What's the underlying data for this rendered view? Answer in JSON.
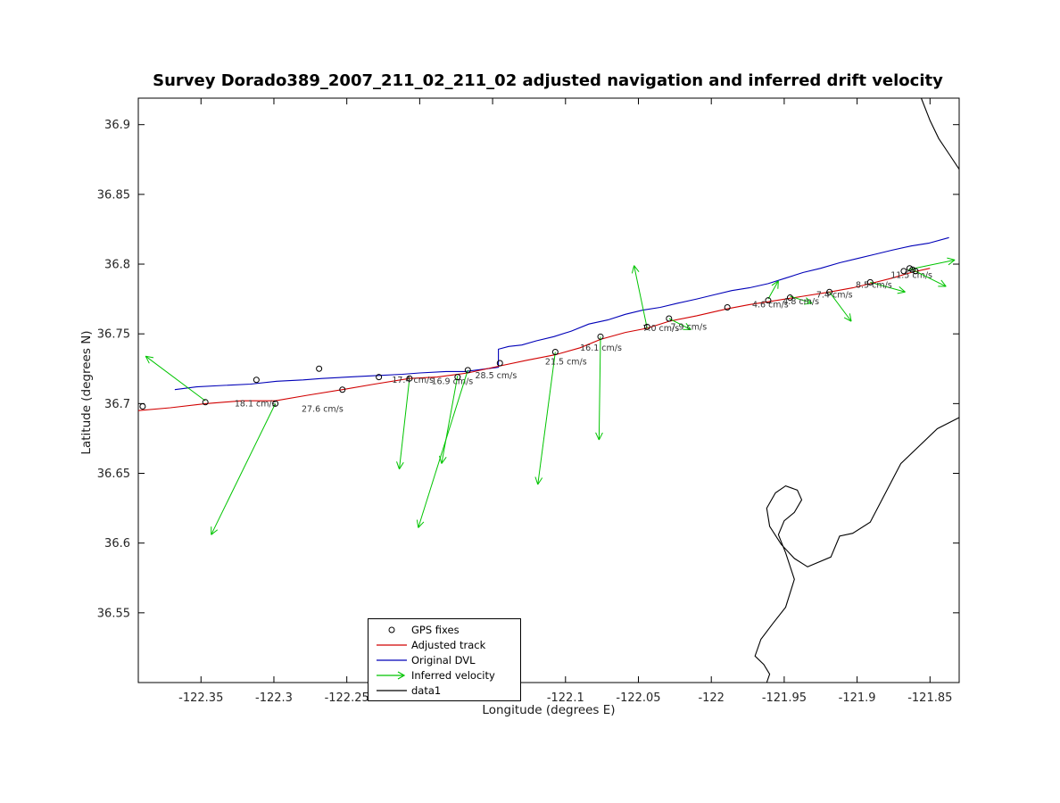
{
  "colors": {
    "gps": "#000000",
    "velocity": "#00c400"
  },
  "legend": {
    "items": [
      {
        "label": "GPS fixes"
      },
      {
        "label": "Adjusted track"
      },
      {
        "label": "Original DVL"
      },
      {
        "label": "Inferred velocity"
      },
      {
        "label": "data1"
      }
    ]
  },
  "chart_data": {
    "type": "line",
    "title": "Survey Dorado389_2007_211_02_211_02 adjusted navigation and inferred drift velocity",
    "xlabel": "Longitude (degrees E)",
    "ylabel": "Latitude (degrees N)",
    "xlim": [
      -122.393,
      -121.83
    ],
    "ylim": [
      36.5,
      36.919
    ],
    "xticks": [
      {
        "value": -122.35,
        "label": "-122.35"
      },
      {
        "value": -122.3,
        "label": "-122.3"
      },
      {
        "value": -122.25,
        "label": "-122.25"
      },
      {
        "value": -122.2,
        "label": "-122.2"
      },
      {
        "value": -122.15,
        "label": "-122.15"
      },
      {
        "value": -122.1,
        "label": "-122.1"
      },
      {
        "value": -122.05,
        "label": "-122.05"
      },
      {
        "value": -122.0,
        "label": "-122"
      },
      {
        "value": -121.95,
        "label": "-121.95"
      },
      {
        "value": -121.9,
        "label": "-121.9"
      },
      {
        "value": -121.85,
        "label": "-121.85"
      }
    ],
    "yticks": [
      {
        "value": 36.55,
        "label": "36.55"
      },
      {
        "value": 36.6,
        "label": "36.6"
      },
      {
        "value": 36.65,
        "label": "36.65"
      },
      {
        "value": 36.7,
        "label": "36.7"
      },
      {
        "value": 36.75,
        "label": "36.75"
      },
      {
        "value": 36.8,
        "label": "36.8"
      },
      {
        "value": 36.85,
        "label": "36.85"
      },
      {
        "value": 36.9,
        "label": "36.9"
      }
    ],
    "gps_fixes": [
      [
        -122.39,
        36.698
      ],
      [
        -122.347,
        36.701
      ],
      [
        -122.312,
        36.717
      ],
      [
        -122.299,
        36.7
      ],
      [
        -122.269,
        36.725
      ],
      [
        -122.253,
        36.71
      ],
      [
        -122.228,
        36.719
      ],
      [
        -122.207,
        36.718
      ],
      [
        -122.174,
        36.719
      ],
      [
        -122.167,
        36.724
      ],
      [
        -122.145,
        36.729
      ],
      [
        -122.107,
        36.737
      ],
      [
        -122.076,
        36.748
      ],
      [
        -122.044,
        36.755
      ],
      [
        -122.029,
        36.761
      ],
      [
        -121.989,
        36.769
      ],
      [
        -121.961,
        36.774
      ],
      [
        -121.946,
        36.776
      ],
      [
        -121.919,
        36.78
      ],
      [
        -121.891,
        36.787
      ],
      [
        -121.868,
        36.795
      ],
      [
        -121.864,
        36.797
      ],
      [
        -121.862,
        36.796
      ],
      [
        -121.86,
        36.795
      ]
    ],
    "series": [
      {
        "id": "original-dvl-track",
        "name": "Original DVL",
        "color": "#0000b8",
        "segments": [
          [
            [
              -122.368,
              36.71
            ],
            [
              -122.353,
              36.712
            ],
            [
              -122.335,
              36.713
            ],
            [
              -122.316,
              36.714
            ],
            [
              -122.298,
              36.716
            ],
            [
              -122.28,
              36.717
            ],
            [
              -122.267,
              36.718
            ],
            [
              -122.249,
              36.719
            ],
            [
              -122.231,
              36.72
            ],
            [
              -122.212,
              36.721
            ],
            [
              -122.2,
              36.722
            ],
            [
              -122.182,
              36.723
            ],
            [
              -122.169,
              36.723
            ],
            [
              -122.154,
              36.725
            ],
            [
              -122.146,
              36.726
            ],
            [
              -122.146,
              36.739
            ],
            [
              -122.139,
              36.741
            ],
            [
              -122.13,
              36.742
            ],
            [
              -122.12,
              36.745
            ],
            [
              -122.108,
              36.748
            ],
            [
              -122.096,
              36.752
            ],
            [
              -122.084,
              36.757
            ],
            [
              -122.071,
              36.76
            ],
            [
              -122.059,
              36.764
            ],
            [
              -122.047,
              36.767
            ],
            [
              -122.035,
              36.769
            ],
            [
              -122.023,
              36.772
            ],
            [
              -122.01,
              36.775
            ],
            [
              -121.998,
              36.778
            ],
            [
              -121.986,
              36.781
            ],
            [
              -121.974,
              36.783
            ],
            [
              -121.961,
              36.786
            ],
            [
              -121.949,
              36.79
            ],
            [
              -121.937,
              36.794
            ],
            [
              -121.925,
              36.797
            ],
            [
              -121.912,
              36.801
            ],
            [
              -121.9,
              36.804
            ],
            [
              -121.888,
              36.807
            ],
            [
              -121.876,
              36.81
            ],
            [
              -121.863,
              36.813
            ],
            [
              -121.851,
              36.815
            ],
            [
              -121.837,
              36.819
            ]
          ]
        ]
      },
      {
        "id": "adjusted-track",
        "name": "Adjusted track",
        "color": "#d10000",
        "segments": [
          [
            [
              -122.393,
              36.695
            ],
            [
              -122.371,
              36.697
            ],
            [
              -122.347,
              36.7
            ],
            [
              -122.322,
              36.702
            ],
            [
              -122.299,
              36.702
            ],
            [
              -122.277,
              36.706
            ],
            [
              -122.253,
              36.71
            ],
            [
              -122.231,
              36.714
            ],
            [
              -122.207,
              36.718
            ],
            [
              -122.188,
              36.719
            ],
            [
              -122.167,
              36.722
            ],
            [
              -122.145,
              36.727
            ],
            [
              -122.127,
              36.731
            ],
            [
              -122.107,
              36.735
            ],
            [
              -122.09,
              36.74
            ],
            [
              -122.076,
              36.746
            ],
            [
              -122.059,
              36.751
            ],
            [
              -122.044,
              36.754
            ],
            [
              -122.029,
              36.759
            ],
            [
              -122.01,
              36.763
            ],
            [
              -121.989,
              36.768
            ],
            [
              -121.974,
              36.771
            ],
            [
              -121.961,
              36.773
            ],
            [
              -121.937,
              36.777
            ],
            [
              -121.919,
              36.78
            ],
            [
              -121.903,
              36.783
            ],
            [
              -121.891,
              36.786
            ],
            [
              -121.876,
              36.79
            ],
            [
              -121.863,
              36.794
            ],
            [
              -121.85,
              36.797
            ]
          ]
        ]
      },
      {
        "id": "coastline",
        "name": "data1",
        "color": "#000000",
        "segments": [
          [
            [
              -121.856,
              36.919
            ],
            [
              -121.85,
              36.903
            ],
            [
              -121.844,
              36.89
            ],
            [
              -121.837,
              36.879
            ],
            [
              -121.83,
              36.868
            ]
          ],
          [
            [
              -121.83,
              36.69
            ],
            [
              -121.845,
              36.682
            ],
            [
              -121.87,
              36.657
            ],
            [
              -121.891,
              36.615
            ],
            [
              -121.903,
              36.607
            ],
            [
              -121.912,
              36.605
            ],
            [
              -121.918,
              36.59
            ],
            [
              -121.934,
              36.583
            ],
            [
              -121.943,
              36.589
            ],
            [
              -121.952,
              36.599
            ],
            [
              -121.96,
              36.612
            ],
            [
              -121.962,
              36.625
            ],
            [
              -121.956,
              36.636
            ],
            [
              -121.949,
              36.641
            ],
            [
              -121.941,
              36.638
            ],
            [
              -121.938,
              36.631
            ],
            [
              -121.943,
              36.622
            ],
            [
              -121.95,
              36.616
            ],
            [
              -121.954,
              36.606
            ],
            [
              -121.949,
              36.593
            ],
            [
              -121.943,
              36.574
            ],
            [
              -121.949,
              36.554
            ],
            [
              -121.958,
              36.542
            ],
            [
              -121.966,
              36.531
            ],
            [
              -121.97,
              36.519
            ],
            [
              -121.964,
              36.513
            ],
            [
              -121.96,
              36.506
            ],
            [
              -121.962,
              36.5
            ]
          ]
        ]
      }
    ],
    "vectors": [
      {
        "label": "18.1 cm/s",
        "start": [
          -122.347,
          36.702
        ],
        "end": [
          -122.388,
          36.734
        ],
        "label_pos": [
          -122.327,
          36.7
        ]
      },
      {
        "label": "27.6 cm/s",
        "start": [
          -122.299,
          36.7
        ],
        "end": [
          -122.343,
          36.606
        ],
        "label_pos": [
          -122.281,
          36.696
        ]
      },
      {
        "label": "17.4 cm/s",
        "start": [
          -122.207,
          36.718
        ],
        "end": [
          -122.214,
          36.653
        ],
        "label_pos": [
          -122.219,
          36.717
        ]
      },
      {
        "label": "16.9 cm/s",
        "start": [
          -122.174,
          36.72
        ],
        "end": [
          -122.185,
          36.657
        ],
        "label_pos": [
          -122.192,
          36.716
        ]
      },
      {
        "label": "28.5 cm/s",
        "start": [
          -122.167,
          36.724
        ],
        "end": [
          -122.201,
          36.611
        ],
        "label_pos": [
          -122.162,
          36.72
        ]
      },
      {
        "label": "21.5 cm/s",
        "start": [
          -122.107,
          36.737
        ],
        "end": [
          -122.119,
          36.642
        ],
        "label_pos": [
          -122.114,
          36.73
        ]
      },
      {
        "label": "16.1 cm/s",
        "start": [
          -122.076,
          36.748
        ],
        "end": [
          -122.077,
          36.674
        ],
        "label_pos": [
          -122.09,
          36.74
        ]
      },
      {
        "label": "7.0 cm/s",
        "start": [
          -122.044,
          36.754
        ],
        "end": [
          -122.053,
          36.799
        ],
        "label_pos": [
          -122.047,
          36.754
        ]
      },
      {
        "label": "7.9 cm/s",
        "start": [
          -122.029,
          36.761
        ],
        "end": [
          -122.014,
          36.753
        ],
        "label_pos": [
          -122.028,
          36.755
        ]
      },
      {
        "label": "4.6 cm/s",
        "start": [
          -121.961,
          36.775
        ],
        "end": [
          -121.954,
          36.788
        ],
        "label_pos": [
          -121.972,
          36.771
        ]
      },
      {
        "label": "4.8 cm/s",
        "start": [
          -121.946,
          36.777
        ],
        "end": [
          -121.931,
          36.772
        ],
        "label_pos": [
          -121.951,
          36.773
        ]
      },
      {
        "label": "7.4 cm/s",
        "start": [
          -121.919,
          36.78
        ],
        "end": [
          -121.904,
          36.759
        ],
        "label_pos": [
          -121.928,
          36.778
        ]
      },
      {
        "label": "8.5 cm/s",
        "start": [
          -121.891,
          36.787
        ],
        "end": [
          -121.867,
          36.78
        ],
        "label_pos": [
          -121.901,
          36.785
        ]
      },
      {
        "label": "11.5 cm/s",
        "start": [
          -121.865,
          36.796
        ],
        "end": [
          -121.833,
          36.803
        ],
        "label_pos": [
          -121.877,
          36.792
        ]
      },
      {
        "label": "",
        "start": [
          -121.862,
          36.796
        ],
        "end": [
          -121.839,
          36.784
        ],
        "label_pos": [
          -121.862,
          36.796
        ]
      }
    ]
  }
}
